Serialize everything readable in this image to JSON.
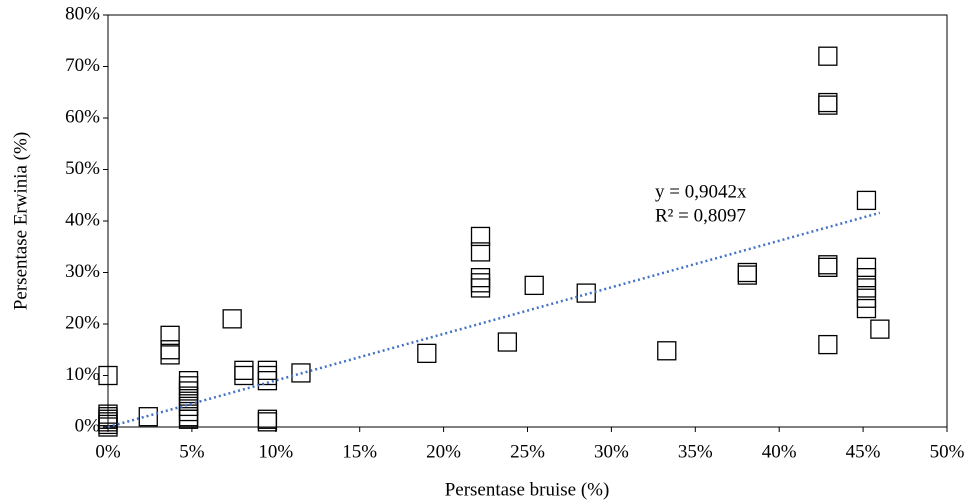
{
  "chart_data": {
    "type": "scatter",
    "xlabel": "Persentase bruise (%)",
    "ylabel": "Persentase Erwinia (%)",
    "x": [
      0,
      0,
      0,
      0,
      0,
      0,
      0,
      2.4,
      3.7,
      3.7,
      3.7,
      4.8,
      4.8,
      4.8,
      4.8,
      4.8,
      4.8,
      4.8,
      4.8,
      4.8,
      7.4,
      8.1,
      8.1,
      9.5,
      9.5,
      9.5,
      9.5,
      9.5,
      11.5,
      19,
      22.2,
      22.2,
      22.2,
      22.2,
      22.2,
      23.8,
      25.4,
      28.5,
      33.3,
      38.1,
      38.1,
      42.9,
      42.9,
      42.9,
      42.9,
      42.9,
      42.9,
      45.2,
      45.2,
      45.2,
      45.2,
      45.2,
      45.2,
      46
    ],
    "values": [
      10,
      2.5,
      2,
      1.5,
      1,
      0.5,
      0,
      2,
      17.8,
      15,
      14,
      9,
      8,
      7,
      6,
      5,
      4,
      3,
      2,
      1.5,
      21,
      11,
      10,
      11,
      10,
      9,
      1.5,
      1,
      10.5,
      14.3,
      37,
      34,
      29,
      28,
      27,
      16.5,
      27.5,
      26,
      14.8,
      30,
      29.5,
      72,
      63,
      62.5,
      31.5,
      31,
      16,
      44,
      31,
      29,
      27,
      25,
      23,
      19
    ],
    "color": "#000000",
    "trendline": {
      "slope": 0.9042,
      "color": "#4472c4",
      "equation": "y = 0,9042x",
      "r2": "R² = 0,8097"
    },
    "xlim": [
      0,
      50
    ],
    "xticks": [
      {
        "value": 0,
        "label": "0%"
      },
      {
        "value": 5,
        "label": "5%"
      },
      {
        "value": 10,
        "label": "10%"
      },
      {
        "value": 15,
        "label": "15%"
      },
      {
        "value": 20,
        "label": "20%"
      },
      {
        "value": 25,
        "label": "25%"
      },
      {
        "value": 30,
        "label": "30%"
      },
      {
        "value": 35,
        "label": "35%"
      },
      {
        "value": 40,
        "label": "40%"
      },
      {
        "value": 45,
        "label": "45%"
      },
      {
        "value": 50,
        "label": "50%"
      }
    ],
    "ylim": [
      0,
      80
    ],
    "yticks": [
      {
        "value": 0,
        "label": "0%"
      },
      {
        "value": 10,
        "label": "10%"
      },
      {
        "value": 20,
        "label": "20%"
      },
      {
        "value": 30,
        "label": "30%"
      },
      {
        "value": 40,
        "label": "40%"
      },
      {
        "value": 50,
        "label": "50%"
      },
      {
        "value": 60,
        "label": "60%"
      },
      {
        "value": 70,
        "label": "70%"
      },
      {
        "value": 80,
        "label": "80%"
      }
    ]
  }
}
